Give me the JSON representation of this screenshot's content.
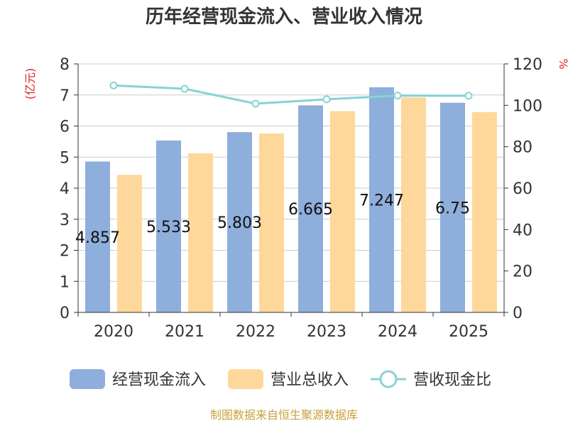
{
  "chart_data": {
    "type": "bar",
    "title": "历年经营现金流入、营业收入情况",
    "categories": [
      "2020",
      "2021",
      "2022",
      "2023",
      "2024",
      "2025"
    ],
    "series": [
      {
        "name": "经营现金流入",
        "type": "bar",
        "axis": "left",
        "color": "#8eaedb",
        "values": [
          4.857,
          5.533,
          5.803,
          6.665,
          7.247,
          6.75
        ]
      },
      {
        "name": "营业总收入",
        "type": "bar",
        "axis": "left",
        "color": "#fdd89a",
        "values": [
          4.43,
          5.12,
          5.76,
          6.48,
          6.92,
          6.45
        ]
      },
      {
        "name": "营收现金比",
        "type": "line",
        "axis": "right",
        "color": "#88d2d6",
        "values": [
          109.6,
          108.0,
          100.8,
          102.9,
          104.7,
          104.6
        ]
      }
    ],
    "data_labels": [
      "4.857",
      "5.533",
      "5.803",
      "6.665",
      "7.247",
      "6.75"
    ],
    "ylabel_left": "(亿元)",
    "ylabel_right": "%",
    "ylim_left": [
      0,
      8
    ],
    "ylim_right": [
      0,
      120
    ],
    "yticks_left": [
      "0",
      "1",
      "2",
      "3",
      "4",
      "5",
      "6",
      "7",
      "8"
    ],
    "yticks_right": [
      "0",
      "20",
      "40",
      "60",
      "80",
      "100",
      "120"
    ],
    "grid": true,
    "legend_position": "bottom",
    "legend": [
      "经营现金流入",
      "营业总收入",
      "营收现金比"
    ],
    "unit_color": "#e02020",
    "source": "制图数据来自恒生聚源数据库"
  }
}
